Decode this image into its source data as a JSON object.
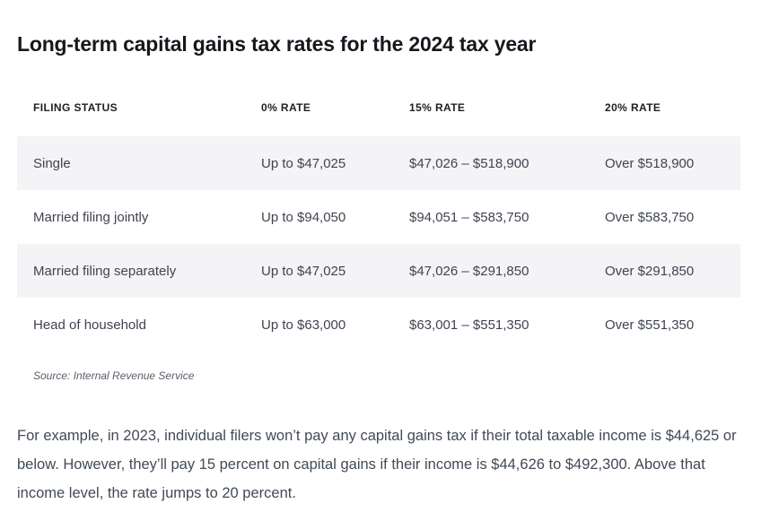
{
  "article": {
    "title": "Long-term capital gains tax rates for the 2024 tax year",
    "source_note": "Source: Internal Revenue Service",
    "body_paragraph": "For example, in 2023, individual filers won’t pay any capital gains tax if their total taxable income is $44,625 or below. However, they’ll pay 15 percent on capital gains if their income is $44,626 to $492,300. Above that income level, the rate jumps to 20 percent."
  },
  "table": {
    "columns": [
      "FILING STATUS",
      "0% RATE",
      "15% RATE",
      "20% RATE"
    ],
    "rows": [
      {
        "filing_status": "Single",
        "rate_0": "Up to $47,025",
        "rate_15": "$47,026 – $518,900",
        "rate_20": "Over $518,900"
      },
      {
        "filing_status": "Married filing jointly",
        "rate_0": "Up to $94,050",
        "rate_15": "$94,051 – $583,750",
        "rate_20": "Over $583,750"
      },
      {
        "filing_status": "Married filing separately",
        "rate_0": "Up to $47,025",
        "rate_15": "$47,026 – $291,850",
        "rate_20": "Over $291,850"
      },
      {
        "filing_status": "Head of household",
        "rate_0": "Up to $63,000",
        "rate_15": "$63,001 – $551,350",
        "rate_20": "Over $551,350"
      }
    ]
  },
  "colors": {
    "row_shade": "#f4f4f6",
    "title_text": "#15191e",
    "header_text": "#1c2026",
    "cell_text": "#3f4450",
    "paragraph_text": "#414a57",
    "source_text": "#585e68"
  }
}
